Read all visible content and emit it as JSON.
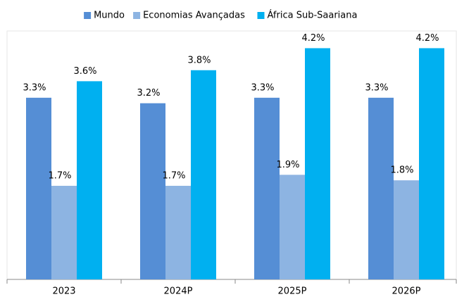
{
  "chart_data": {
    "type": "bar",
    "categories": [
      "2023",
      "2024P",
      "2025P",
      "2026P"
    ],
    "series": [
      {
        "name": "Mundo",
        "color": "#558ed5",
        "values": [
          3.3,
          3.2,
          3.3,
          3.3
        ],
        "value_labels": [
          "3.3%",
          "3.2%",
          "3.3%",
          "3.3%"
        ]
      },
      {
        "name": "Economias Avançadas",
        "color": "#8db4e2",
        "values": [
          1.7,
          1.7,
          1.9,
          1.8
        ],
        "value_labels": [
          "1.7%",
          "1.7%",
          "1.9%",
          "1.8%"
        ]
      },
      {
        "name": "África Sub-Saariana",
        "color": "#00b0f0",
        "values": [
          3.6,
          3.8,
          4.2,
          4.2
        ],
        "value_labels": [
          "3.6%",
          "3.8%",
          "4.2%",
          "4.2%"
        ]
      }
    ],
    "ylim": [
      0,
      4.5
    ],
    "legend": "top"
  }
}
